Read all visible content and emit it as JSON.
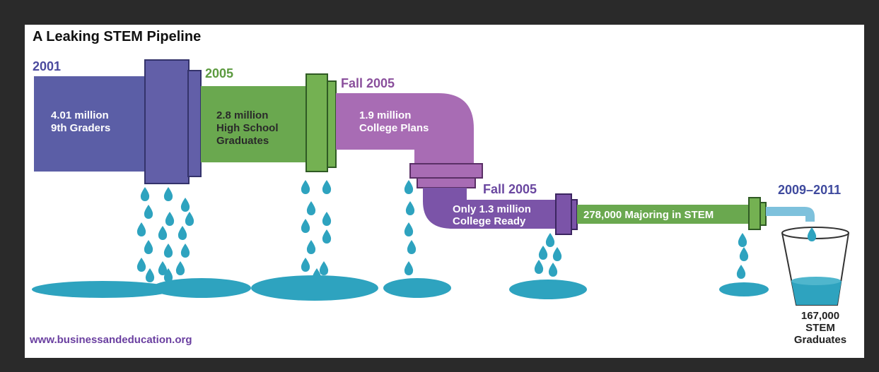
{
  "title": "A Leaking STEM Pipeline",
  "stages": [
    {
      "year": "2001",
      "lines": [
        "4.01 million",
        "9th Graders"
      ]
    },
    {
      "year": "2005",
      "lines": [
        "2.8 million",
        "High School",
        "Graduates"
      ]
    },
    {
      "year": "Fall 2005",
      "lines": [
        "1.9 million",
        "College Plans"
      ]
    },
    {
      "year": "Fall 2005",
      "lines": [
        "Only 1.3 million",
        "College Ready"
      ]
    },
    {
      "year": "2009–2011",
      "lines": [
        "278,000 Majoring in STEM"
      ]
    }
  ],
  "outcome": [
    "167,000",
    "STEM",
    "Graduates"
  ],
  "source": "www.businessandeducation.org"
}
